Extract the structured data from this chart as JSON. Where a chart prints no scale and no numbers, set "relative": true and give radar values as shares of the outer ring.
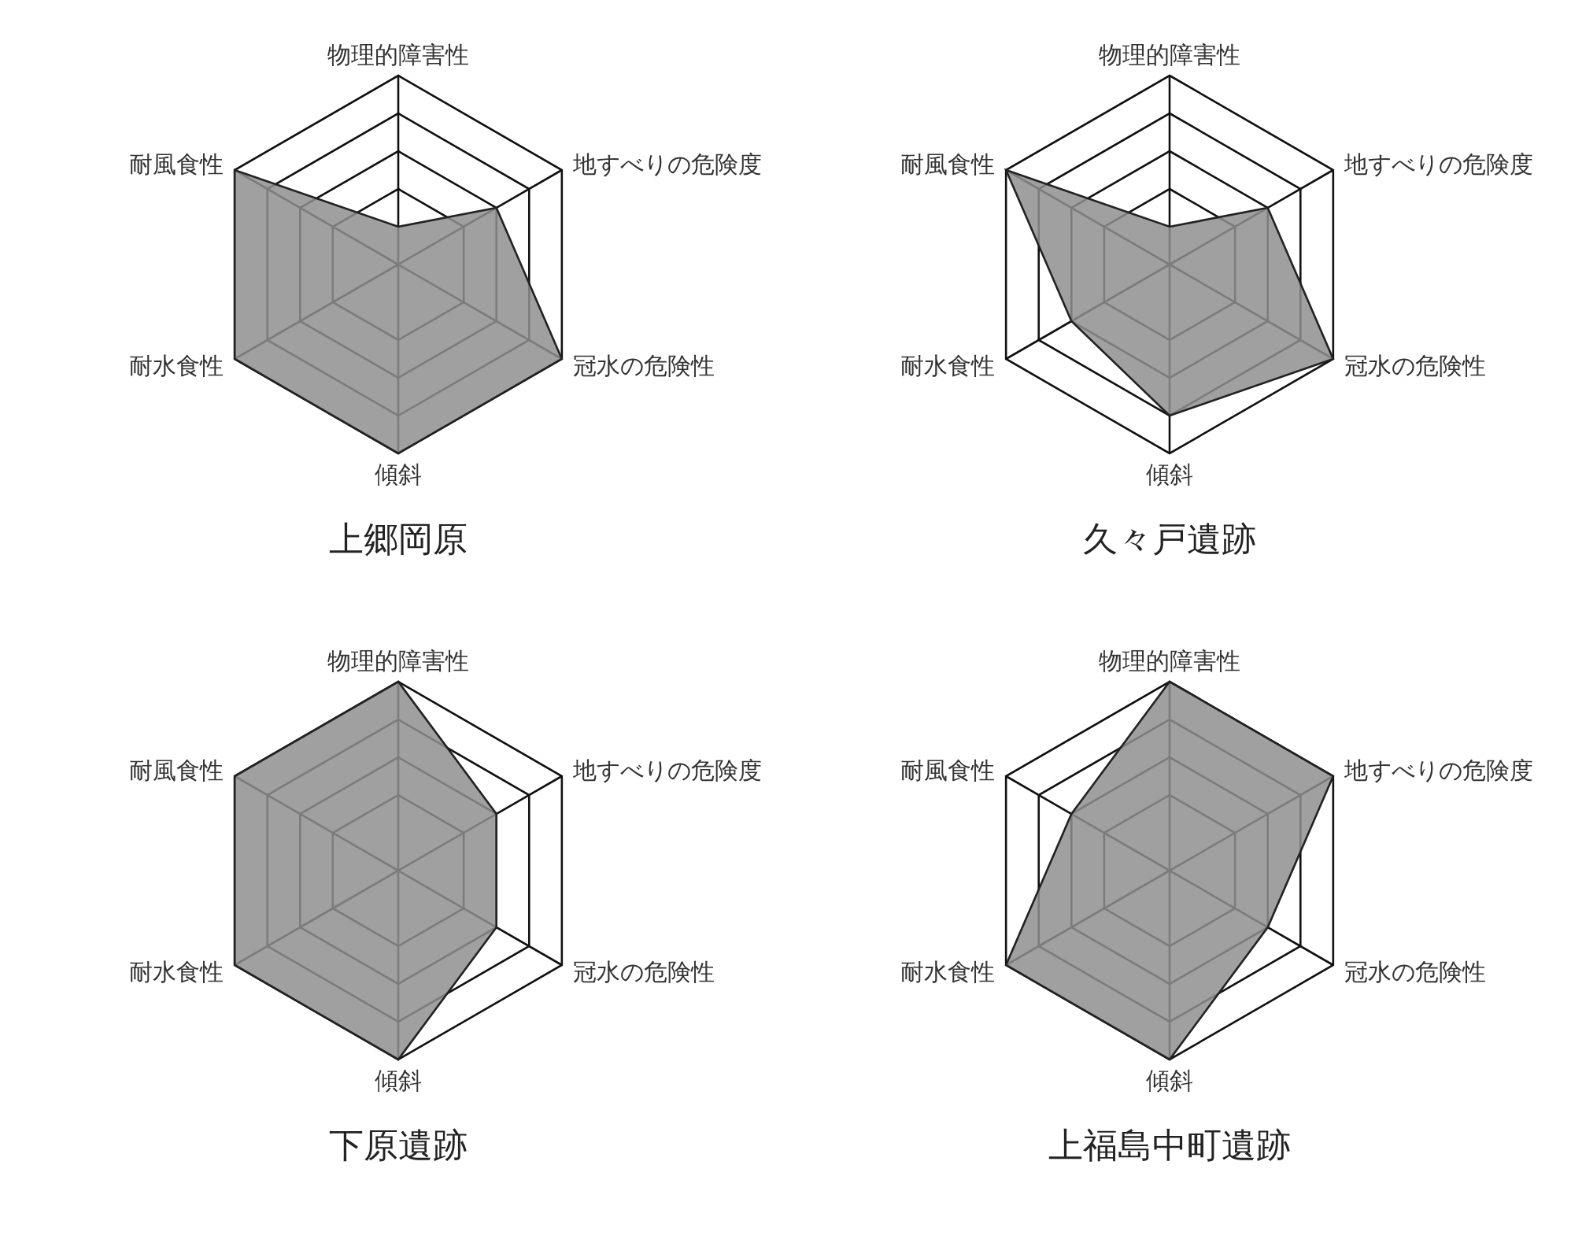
{
  "chart_data": [
    {
      "type": "radar",
      "title": "上郷岡原",
      "categories": [
        "物理的障害性",
        "地すべりの危険度",
        "冠水の危険性",
        "傾斜",
        "耐水食性",
        "耐風食性"
      ],
      "relative": true,
      "grid": true,
      "series": [
        {
          "color": "#8f8f8f",
          "values": [
            0.2,
            0.6,
            1,
            1,
            1,
            1
          ]
        }
      ]
    },
    {
      "type": "radar",
      "title": "久々戸遺跡",
      "categories": [
        "物理的障害性",
        "地すべりの危険度",
        "冠水の危険性",
        "傾斜",
        "耐水食性",
        "耐風食性"
      ],
      "relative": true,
      "grid": true,
      "series": [
        {
          "color": "#8f8f8f",
          "values": [
            0.2,
            0.6,
            1,
            0.8,
            0.6,
            1
          ]
        }
      ]
    },
    {
      "type": "radar",
      "title": "下原遺跡",
      "categories": [
        "物理的障害性",
        "地すべりの危険度",
        "冠水の危険性",
        "傾斜",
        "耐水食性",
        "耐風食性"
      ],
      "relative": true,
      "grid": true,
      "series": [
        {
          "color": "#8f8f8f",
          "values": [
            1,
            0.6,
            0.6,
            1,
            1,
            1
          ]
        }
      ]
    },
    {
      "type": "radar",
      "title": "上福島中町遺跡",
      "categories": [
        "物理的障害性",
        "地すべりの危険度",
        "冠水の危険性",
        "傾斜",
        "耐水食性",
        "耐風食性"
      ],
      "relative": true,
      "grid": true,
      "series": [
        {
          "color": "#8f8f8f",
          "values": [
            1,
            1,
            0.6,
            1,
            1,
            0.6
          ]
        }
      ]
    }
  ]
}
